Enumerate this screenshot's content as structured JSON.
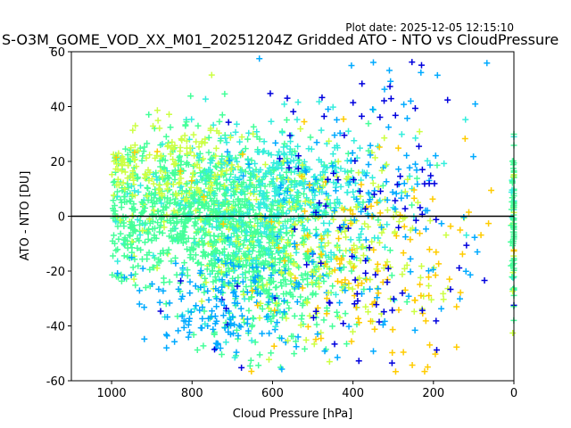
{
  "plot_date": "Plot date: 2025-12-05 12:15:10",
  "chart_data": {
    "type": "scatter",
    "title": "S-O3M_GOME_VOD_XX_M01_20251204Z Gridded ATO - NTO vs CloudPressure",
    "xlabel": "Cloud Pressure [hPa]",
    "ylabel": "ATO - NTO [DU]",
    "xlim": [
      1100,
      0
    ],
    "ylim": [
      -60,
      60
    ],
    "x_inverted": true,
    "xticks": [
      1000,
      800,
      600,
      400,
      200,
      0
    ],
    "yticks": [
      -60,
      -40,
      -20,
      0,
      20,
      40,
      60
    ],
    "grid": false,
    "legend": "none",
    "reference_line": {
      "y": 0,
      "color": "#000000"
    },
    "marker": "+",
    "color_scale": [
      "#0000dd",
      "#00aaff",
      "#33eedd",
      "#44ff99",
      "#ccff44",
      "#ffcc00"
    ],
    "description_of_density": "points densest near 600-900 hPa between -30 and 30 DU; outliers extend to +55 and -58",
    "clusters": [
      {
        "x_center": 780,
        "x_spread": 140,
        "y_center": 2,
        "y_spread": 13,
        "color_index": 3,
        "count": 900
      },
      {
        "x_center": 620,
        "x_spread": 90,
        "y_center": -18,
        "y_spread": 14,
        "color_index": 3,
        "count": 500
      },
      {
        "x_center": 560,
        "x_spread": 130,
        "y_center": 10,
        "y_spread": 12,
        "color_index": 2,
        "count": 420
      },
      {
        "x_center": 850,
        "x_spread": 90,
        "y_center": 18,
        "y_spread": 8,
        "color_index": 4,
        "count": 160
      },
      {
        "x_center": 720,
        "x_spread": 120,
        "y_center": -32,
        "y_spread": 10,
        "color_index": 1,
        "count": 180
      },
      {
        "x_center": 450,
        "x_spread": 120,
        "y_center": -10,
        "y_spread": 18,
        "color_index": 4,
        "count": 200
      },
      {
        "x_center": 350,
        "x_spread": 120,
        "y_center": 5,
        "y_spread": 25,
        "color_index": 1,
        "count": 120
      },
      {
        "x_center": 300,
        "x_spread": 150,
        "y_center": -20,
        "y_spread": 20,
        "color_index": 5,
        "count": 110
      },
      {
        "x_center": 330,
        "x_spread": 150,
        "y_center": 0,
        "y_spread": 35,
        "color_index": 0,
        "count": 90
      },
      {
        "x_center": 0,
        "x_spread": 3,
        "y_center": -5,
        "y_spread": 18,
        "color_index": 3,
        "count": 90
      }
    ]
  }
}
